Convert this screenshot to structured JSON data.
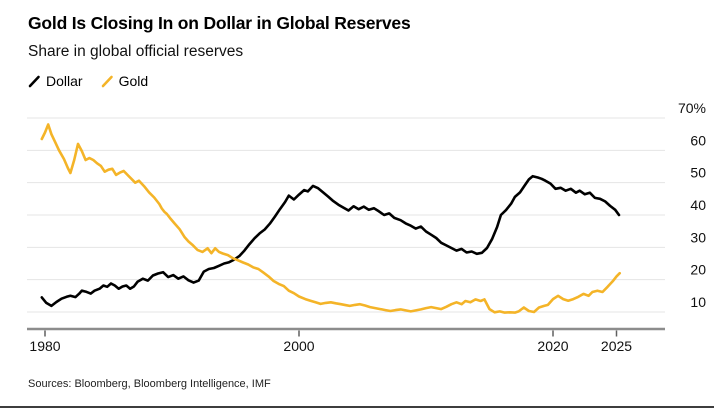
{
  "header": {
    "title": "Gold Is Closing In on Dollar in Global Reserves",
    "subtitle": "Share in global official reserves"
  },
  "legend": [
    {
      "label": "Dollar",
      "color": "#000000"
    },
    {
      "label": "Gold",
      "color": "#F4B428"
    }
  ],
  "source": "Sources: Bloomberg, Bloomberg Intelligence, IMF",
  "chart_data": {
    "type": "line",
    "title": "Gold Is Closing In on Dollar in Global Reserves",
    "subtitle": "Share in global official reserves",
    "ylabel": "Share in global official reserves (%)",
    "grid": "horizontal",
    "legend_position": "top-left",
    "colors": {
      "grid": "#E4E4E4",
      "axis": "#8C8C8C",
      "tick": "#5F5F5F"
    },
    "x_axis": {
      "ticks": [
        1980,
        2000,
        2020,
        2025
      ],
      "range": [
        1978.6,
        2028.8
      ]
    },
    "y_axis": {
      "ticks": [
        10,
        20,
        30,
        40,
        50,
        60,
        70
      ],
      "max_suffix": "%",
      "range": [
        3,
        70
      ]
    },
    "series": [
      {
        "name": "Dollar",
        "color": "#000000",
        "points": [
          [
            1979.75,
            14.5
          ],
          [
            1980.1,
            12.8
          ],
          [
            1980.5,
            11.9
          ],
          [
            1980.9,
            13.1
          ],
          [
            1981.3,
            14.1
          ],
          [
            1981.7,
            14.7
          ],
          [
            1982.0,
            15.0
          ],
          [
            1982.4,
            14.6
          ],
          [
            1982.7,
            15.7
          ],
          [
            1982.9,
            16.6
          ],
          [
            1983.2,
            16.3
          ],
          [
            1983.6,
            15.7
          ],
          [
            1983.9,
            16.6
          ],
          [
            1984.3,
            17.2
          ],
          [
            1984.6,
            18.2
          ],
          [
            1984.9,
            17.8
          ],
          [
            1985.2,
            18.8
          ],
          [
            1985.5,
            18.2
          ],
          [
            1985.8,
            17.2
          ],
          [
            1986.1,
            17.9
          ],
          [
            1986.4,
            18.2
          ],
          [
            1986.7,
            17.2
          ],
          [
            1987.0,
            17.9
          ],
          [
            1987.3,
            19.4
          ],
          [
            1987.7,
            20.3
          ],
          [
            1988.1,
            19.7
          ],
          [
            1988.5,
            21.3
          ],
          [
            1988.9,
            21.9
          ],
          [
            1989.3,
            22.3
          ],
          [
            1989.7,
            20.8
          ],
          [
            1990.1,
            21.4
          ],
          [
            1990.5,
            20.3
          ],
          [
            1990.9,
            21.0
          ],
          [
            1991.3,
            19.8
          ],
          [
            1991.7,
            19.1
          ],
          [
            1992.1,
            19.7
          ],
          [
            1992.5,
            22.5
          ],
          [
            1992.9,
            23.3
          ],
          [
            1993.3,
            23.6
          ],
          [
            1993.7,
            24.3
          ],
          [
            1994.1,
            25.0
          ],
          [
            1994.5,
            25.4
          ],
          [
            1994.9,
            26.2
          ],
          [
            1995.3,
            27.3
          ],
          [
            1995.7,
            29.0
          ],
          [
            1996.1,
            31.0
          ],
          [
            1996.5,
            32.8
          ],
          [
            1996.9,
            34.3
          ],
          [
            1997.3,
            35.5
          ],
          [
            1997.7,
            37.3
          ],
          [
            1998.1,
            39.5
          ],
          [
            1998.5,
            41.8
          ],
          [
            1998.9,
            44.0
          ],
          [
            1999.2,
            46.0
          ],
          [
            1999.6,
            44.8
          ],
          [
            2000.0,
            46.3
          ],
          [
            2000.4,
            47.7
          ],
          [
            2000.7,
            47.3
          ],
          [
            2001.1,
            49.0
          ],
          [
            2001.5,
            48.3
          ],
          [
            2001.9,
            47.0
          ],
          [
            2002.3,
            45.7
          ],
          [
            2002.7,
            44.3
          ],
          [
            2003.1,
            43.2
          ],
          [
            2003.5,
            42.3
          ],
          [
            2003.9,
            41.4
          ],
          [
            2004.3,
            42.7
          ],
          [
            2004.7,
            41.8
          ],
          [
            2005.1,
            42.6
          ],
          [
            2005.5,
            41.6
          ],
          [
            2005.9,
            42.1
          ],
          [
            2006.3,
            41.1
          ],
          [
            2006.7,
            40.0
          ],
          [
            2007.1,
            40.5
          ],
          [
            2007.5,
            39.1
          ],
          [
            2008.0,
            38.4
          ],
          [
            2008.4,
            37.4
          ],
          [
            2008.8,
            36.7
          ],
          [
            2009.2,
            35.8
          ],
          [
            2009.6,
            36.4
          ],
          [
            2010.0,
            34.9
          ],
          [
            2010.4,
            33.9
          ],
          [
            2010.8,
            32.9
          ],
          [
            2011.2,
            31.4
          ],
          [
            2011.6,
            30.6
          ],
          [
            2012.0,
            29.8
          ],
          [
            2012.4,
            29.0
          ],
          [
            2012.8,
            29.5
          ],
          [
            2013.2,
            28.4
          ],
          [
            2013.6,
            28.7
          ],
          [
            2014.0,
            28.0
          ],
          [
            2014.4,
            28.3
          ],
          [
            2014.8,
            29.8
          ],
          [
            2015.2,
            32.5
          ],
          [
            2015.6,
            36.3
          ],
          [
            2015.9,
            40.0
          ],
          [
            2016.3,
            41.5
          ],
          [
            2016.7,
            43.5
          ],
          [
            2017.0,
            45.6
          ],
          [
            2017.4,
            47.0
          ],
          [
            2017.8,
            49.3
          ],
          [
            2018.1,
            51.0
          ],
          [
            2018.4,
            52.0
          ],
          [
            2018.8,
            51.6
          ],
          [
            2019.1,
            51.2
          ],
          [
            2019.4,
            50.6
          ],
          [
            2019.8,
            49.7
          ],
          [
            2020.2,
            48.1
          ],
          [
            2020.6,
            48.4
          ],
          [
            2021.0,
            47.5
          ],
          [
            2021.4,
            48.1
          ],
          [
            2021.8,
            46.9
          ],
          [
            2022.1,
            47.5
          ],
          [
            2022.5,
            46.4
          ],
          [
            2022.9,
            46.9
          ],
          [
            2023.3,
            45.3
          ],
          [
            2023.7,
            45.0
          ],
          [
            2024.1,
            44.2
          ],
          [
            2024.5,
            42.8
          ],
          [
            2024.9,
            41.6
          ],
          [
            2025.2,
            40.0
          ]
        ]
      },
      {
        "name": "Gold",
        "color": "#F4B428",
        "points": [
          [
            1979.75,
            63.5
          ],
          [
            1980.0,
            65.5
          ],
          [
            1980.25,
            68.0
          ],
          [
            1980.5,
            65.0
          ],
          [
            1980.8,
            62.5
          ],
          [
            1981.1,
            60.0
          ],
          [
            1981.5,
            57.3
          ],
          [
            1981.8,
            54.5
          ],
          [
            1982.0,
            53.0
          ],
          [
            1982.3,
            57.0
          ],
          [
            1982.6,
            62.0
          ],
          [
            1982.9,
            59.8
          ],
          [
            1983.2,
            57.0
          ],
          [
            1983.5,
            57.6
          ],
          [
            1983.8,
            57.0
          ],
          [
            1984.1,
            56.0
          ],
          [
            1984.4,
            55.2
          ],
          [
            1984.7,
            53.4
          ],
          [
            1985.0,
            54.0
          ],
          [
            1985.3,
            54.3
          ],
          [
            1985.6,
            52.4
          ],
          [
            1985.9,
            53.1
          ],
          [
            1986.2,
            53.6
          ],
          [
            1986.5,
            52.4
          ],
          [
            1986.8,
            51.2
          ],
          [
            1987.1,
            50.0
          ],
          [
            1987.4,
            50.6
          ],
          [
            1987.8,
            48.9
          ],
          [
            1988.2,
            47.0
          ],
          [
            1988.6,
            45.4
          ],
          [
            1989.0,
            43.4
          ],
          [
            1989.2,
            42.0
          ],
          [
            1989.4,
            41.0
          ],
          [
            1989.6,
            40.3
          ],
          [
            1989.9,
            38.8
          ],
          [
            1990.2,
            37.4
          ],
          [
            1990.6,
            35.6
          ],
          [
            1991.0,
            33.1
          ],
          [
            1991.3,
            31.8
          ],
          [
            1991.6,
            30.8
          ],
          [
            1992.0,
            29.2
          ],
          [
            1992.4,
            28.6
          ],
          [
            1992.8,
            29.7
          ],
          [
            1993.1,
            28.2
          ],
          [
            1993.4,
            29.7
          ],
          [
            1993.7,
            28.6
          ],
          [
            1994.0,
            28.1
          ],
          [
            1994.4,
            27.6
          ],
          [
            1994.8,
            26.6
          ],
          [
            1995.2,
            26.0
          ],
          [
            1995.6,
            25.3
          ],
          [
            1996.0,
            24.7
          ],
          [
            1996.4,
            23.8
          ],
          [
            1996.8,
            23.3
          ],
          [
            1997.2,
            22.2
          ],
          [
            1997.6,
            21.0
          ],
          [
            1998.0,
            19.6
          ],
          [
            1998.4,
            18.7
          ],
          [
            1998.8,
            18.0
          ],
          [
            1999.2,
            16.6
          ],
          [
            1999.6,
            15.8
          ],
          [
            2000.0,
            14.8
          ],
          [
            2000.5,
            14.0
          ],
          [
            2000.9,
            13.5
          ],
          [
            2001.3,
            13.0
          ],
          [
            2001.7,
            12.5
          ],
          [
            2002.1,
            12.8
          ],
          [
            2002.5,
            13.0
          ],
          [
            2002.9,
            12.7
          ],
          [
            2003.3,
            12.4
          ],
          [
            2003.7,
            12.1
          ],
          [
            2004.0,
            11.9
          ],
          [
            2004.4,
            12.2
          ],
          [
            2004.8,
            12.4
          ],
          [
            2005.2,
            12.0
          ],
          [
            2005.6,
            11.5
          ],
          [
            2006.0,
            11.2
          ],
          [
            2006.4,
            10.9
          ],
          [
            2006.8,
            10.6
          ],
          [
            2007.2,
            10.3
          ],
          [
            2007.6,
            10.6
          ],
          [
            2008.0,
            10.8
          ],
          [
            2008.4,
            10.5
          ],
          [
            2008.8,
            10.2
          ],
          [
            2009.2,
            10.5
          ],
          [
            2009.6,
            10.8
          ],
          [
            2010.0,
            11.2
          ],
          [
            2010.4,
            11.5
          ],
          [
            2010.8,
            11.2
          ],
          [
            2011.2,
            10.9
          ],
          [
            2011.6,
            11.6
          ],
          [
            2012.0,
            12.4
          ],
          [
            2012.4,
            13.0
          ],
          [
            2012.8,
            12.4
          ],
          [
            2013.1,
            13.4
          ],
          [
            2013.5,
            13.0
          ],
          [
            2013.9,
            13.9
          ],
          [
            2014.3,
            13.4
          ],
          [
            2014.6,
            13.9
          ],
          [
            2015.0,
            10.9
          ],
          [
            2015.4,
            9.9
          ],
          [
            2015.8,
            10.2
          ],
          [
            2016.2,
            9.8
          ],
          [
            2016.6,
            9.9
          ],
          [
            2017.0,
            9.8
          ],
          [
            2017.3,
            10.2
          ],
          [
            2017.7,
            11.4
          ],
          [
            2018.1,
            10.3
          ],
          [
            2018.5,
            10.0
          ],
          [
            2018.9,
            11.4
          ],
          [
            2019.3,
            11.9
          ],
          [
            2019.6,
            12.2
          ],
          [
            2020.0,
            14.0
          ],
          [
            2020.4,
            15.0
          ],
          [
            2020.8,
            14.0
          ],
          [
            2021.2,
            13.5
          ],
          [
            2021.6,
            14.0
          ],
          [
            2022.0,
            14.7
          ],
          [
            2022.4,
            15.6
          ],
          [
            2022.8,
            15.0
          ],
          [
            2023.1,
            16.2
          ],
          [
            2023.5,
            16.6
          ],
          [
            2023.9,
            16.2
          ],
          [
            2024.3,
            17.8
          ],
          [
            2024.7,
            19.5
          ],
          [
            2025.0,
            21.0
          ],
          [
            2025.25,
            22.0
          ]
        ]
      }
    ]
  }
}
